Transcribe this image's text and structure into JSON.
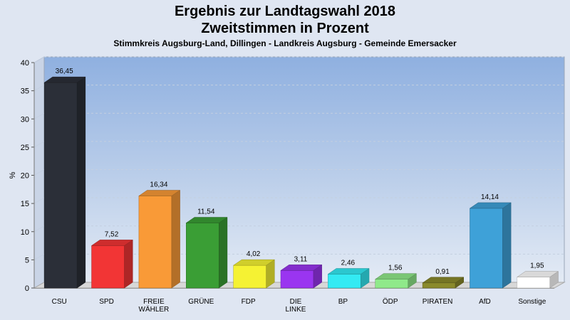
{
  "chart_data": {
    "type": "bar",
    "title": "Ergebnis zur Landtagswahl 2018",
    "subtitle_line": "Zweitstimmen in Prozent",
    "subtitle": "Stimmkreis Augsburg-Land, Dillingen - Landkreis Augsburg - Gemeinde Emersacker",
    "ylabel": "%",
    "ylim": [
      0,
      40
    ],
    "yticks": [
      "0",
      "5",
      "10",
      "15",
      "20",
      "25",
      "30",
      "35",
      "40"
    ],
    "categories": [
      {
        "lines": [
          "CSU"
        ]
      },
      {
        "lines": [
          "SPD"
        ]
      },
      {
        "lines": [
          "FREIE",
          "WÄHLER"
        ]
      },
      {
        "lines": [
          "GRÜNE"
        ]
      },
      {
        "lines": [
          "FDP"
        ]
      },
      {
        "lines": [
          "DIE",
          "LINKE"
        ]
      },
      {
        "lines": [
          "BP"
        ]
      },
      {
        "lines": [
          "ÖDP"
        ]
      },
      {
        "lines": [
          "PIRATEN"
        ]
      },
      {
        "lines": [
          "AfD"
        ]
      },
      {
        "lines": [
          "Sonstige"
        ]
      }
    ],
    "values": [
      36.45,
      7.52,
      16.34,
      11.54,
      4.02,
      3.11,
      2.46,
      1.56,
      0.91,
      14.14,
      1.95
    ],
    "value_labels": [
      "36,45",
      "7,52",
      "16,34",
      "11,54",
      "4,02",
      "3,11",
      "2,46",
      "1,56",
      "0,91",
      "14,14",
      "1,95"
    ],
    "colors": [
      "#2b2f38",
      "#f23535",
      "#f99a37",
      "#3a9e35",
      "#f5f233",
      "#9a35f0",
      "#33eaf3",
      "#8fe98a",
      "#8a8a2c",
      "#3ea1d8",
      "#ffffff"
    ],
    "grid": true
  }
}
